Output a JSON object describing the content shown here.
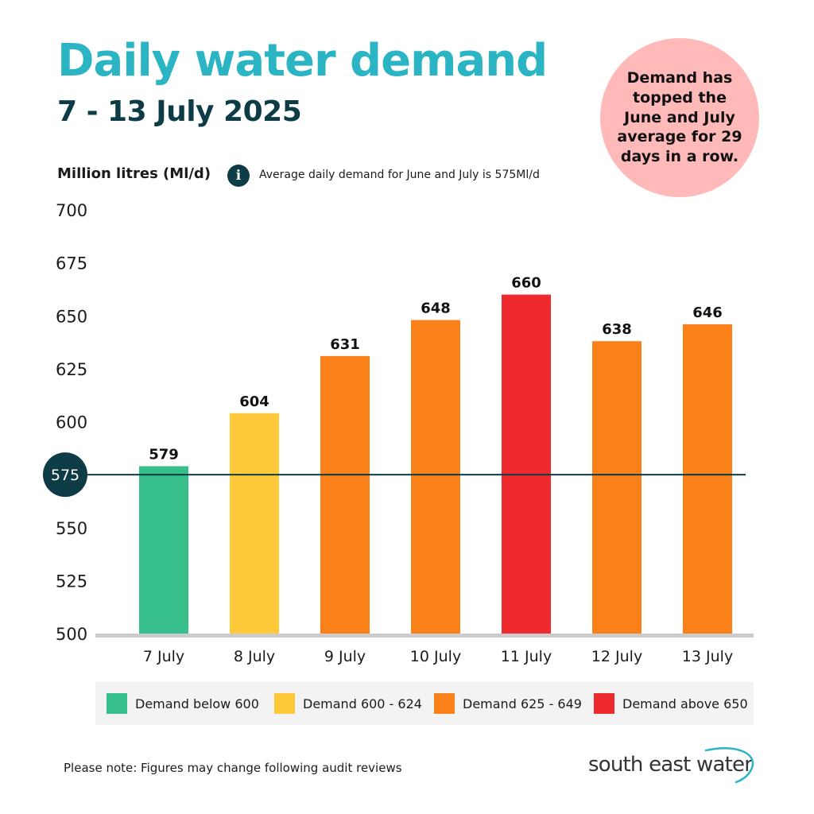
{
  "header": {
    "title": "Daily water demand",
    "subtitle": "7 - 13 July 2025"
  },
  "callout": {
    "text": "Demand has topped the June and July average for 29 days in a row."
  },
  "info": {
    "icon": "info-icon",
    "icon_glyph": "i",
    "text": "Average daily demand for June and July is 575Ml/d"
  },
  "chart_data": {
    "type": "bar",
    "title": "Daily water demand",
    "ylabel": "Million litres (Ml/d)",
    "xlabel": "",
    "categories": [
      "7 July",
      "8 July",
      "9 July",
      "10 July",
      "11 July",
      "12 July",
      "13 July"
    ],
    "values": [
      579,
      604,
      631,
      648,
      660,
      638,
      646
    ],
    "ylim": [
      500,
      700
    ],
    "yticks": [
      500,
      525,
      550,
      575,
      600,
      625,
      650,
      675,
      700
    ],
    "grid": false,
    "reference_line": {
      "value": 575,
      "label": "575",
      "color": "#0e3c46"
    },
    "color_bands": [
      {
        "label": "Demand below 600",
        "min": 0,
        "max": 599,
        "color": "#36bf8a"
      },
      {
        "label": "Demand 600 - 624",
        "min": 600,
        "max": 624,
        "color": "#ffc93a"
      },
      {
        "label": "Demand 625 - 649",
        "min": 625,
        "max": 649,
        "color": "#fa8019"
      },
      {
        "label": "Demand above 650",
        "min": 650,
        "max": 99999,
        "color": "#ef2a2e"
      }
    ]
  },
  "legend": {
    "placement": "bottom",
    "items": [
      {
        "label": "Demand below 600",
        "color": "#36bf8a"
      },
      {
        "label": "Demand 600 - 624",
        "color": "#ffc93a"
      },
      {
        "label": "Demand 625 - 649",
        "color": "#fa8019"
      },
      {
        "label": "Demand above 650",
        "color": "#ef2a2e"
      }
    ]
  },
  "footer": {
    "note": "Please note: Figures may change following audit reviews",
    "logo_text": "south east water"
  },
  "colors": {
    "title": "#2bb5c4",
    "dark": "#0e3c46",
    "callout_bg": "#ffb9b9",
    "axis": "#cccccc"
  }
}
